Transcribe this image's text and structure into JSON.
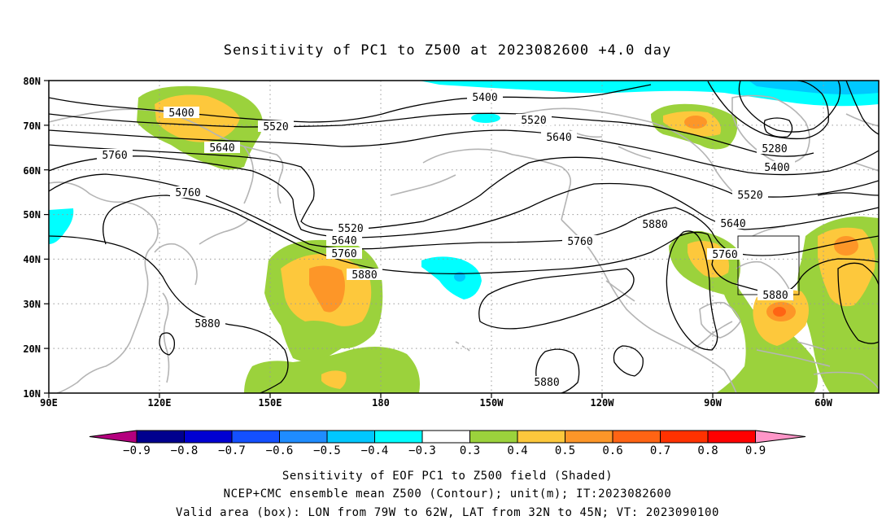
{
  "title": "Sensitivity of PC1 to Z500 at 2023082600 +4.0 day",
  "lat_ticks": [
    "80N",
    "70N",
    "60N",
    "50N",
    "40N",
    "30N",
    "20N",
    "10N"
  ],
  "lon_ticks": [
    "90E",
    "120E",
    "150E",
    "180",
    "150W",
    "120W",
    "90W",
    "60W"
  ],
  "contour_labels": [
    "5400",
    "5520",
    "5640",
    "5760",
    "5880",
    "5280"
  ],
  "colorbar": {
    "labels": [
      "-0.9",
      "-0.8",
      "-0.7",
      "-0.6",
      "-0.5",
      "-0.4",
      "-0.3",
      "0.3",
      "0.4",
      "0.5",
      "0.6",
      "0.7",
      "0.8",
      "0.9"
    ],
    "colors": [
      "#b4007e",
      "#00008e",
      "#0000d2",
      "#1450ff",
      "#1f8cff",
      "#00c8ff",
      "#00ffff",
      "#ffffff",
      "#9bd23c",
      "#fdc83c",
      "#fd9628",
      "#ff6414",
      "#ff3200",
      "#ff0000",
      "#ff96c8"
    ]
  },
  "footer": {
    "line1": "Sensitivity of EOF PC1 to Z500 field (Shaded)",
    "line2": "NCEP+CMC ensemble mean Z500 (Contour); unit(m); IT:2023082600",
    "line3": "Valid area (box): LON from 79W to 62W, LAT from 32N to 45N; VT: 2023090100"
  },
  "map_data": {
    "projection": "cylindrical equidistant",
    "lon_range": [
      "90E",
      "50W"
    ],
    "lat_range": [
      "10N",
      "80N"
    ],
    "contour_interval_m": 120,
    "valid_box": {
      "lon": [
        "79W",
        "62W"
      ],
      "lat": [
        "32N",
        "45N"
      ]
    }
  }
}
